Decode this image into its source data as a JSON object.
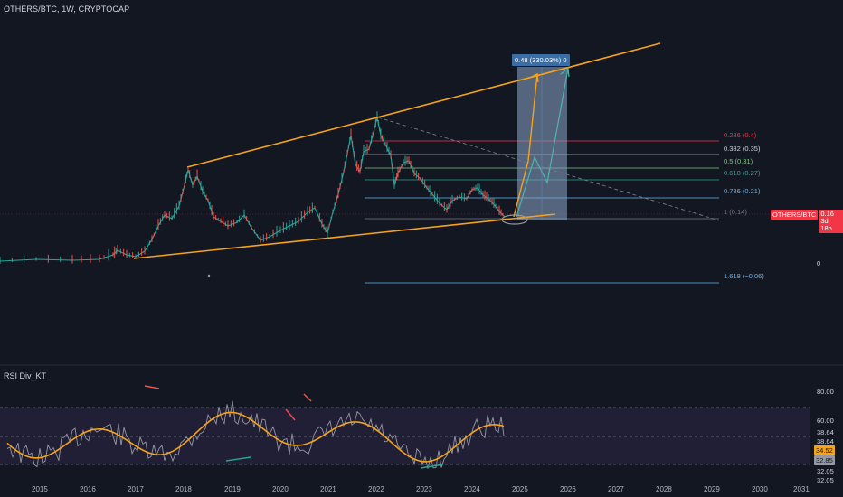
{
  "header": {
    "title": "OTHERS/BTC, 1W, CRYPTOCAP"
  },
  "fib_levels": [
    {
      "label": "0.236 (0.4)",
      "color": "#f23645"
    },
    {
      "label": "0.382 (0.35)",
      "color": "#d1d4dc"
    },
    {
      "label": "0.5 (0.31)",
      "color": "#81c784"
    },
    {
      "label": "0.618 (0.27)",
      "color": "#26a69a"
    },
    {
      "label": "0.786 (0.21)",
      "color": "#64b5f6"
    },
    {
      "label": "1 (0.14)",
      "color": "#787b86"
    },
    {
      "label": "1.618 (−0.06)",
      "color": "#64b5f6"
    }
  ],
  "measure": {
    "label": "0.48 (330.03%) 0"
  },
  "price_axis": {
    "zero_label": "0"
  },
  "symbol_badge": {
    "symbol": "OTHERS/BTC",
    "price": "0.16",
    "countdown": "3d 18h"
  },
  "rsi": {
    "title": "RSI Div_KT",
    "axis_labels": [
      "80.00",
      "60.00",
      "38.64",
      "38.64",
      "34.52",
      "32.85",
      "32.05",
      "32.05"
    ]
  },
  "time_axis": {
    "years": [
      "2015",
      "2016",
      "2017",
      "2018",
      "2019",
      "2020",
      "2021",
      "2022",
      "2023",
      "2024",
      "2025",
      "2026",
      "2027",
      "2028",
      "2029",
      "2030",
      "2031"
    ]
  },
  "colors": {
    "background": "#131722",
    "trend": "#f7a21b",
    "measure_box": "#8aa6c8",
    "up": "#26a69a",
    "down": "#ef5350",
    "rsi_line": "#f7a21b"
  }
}
